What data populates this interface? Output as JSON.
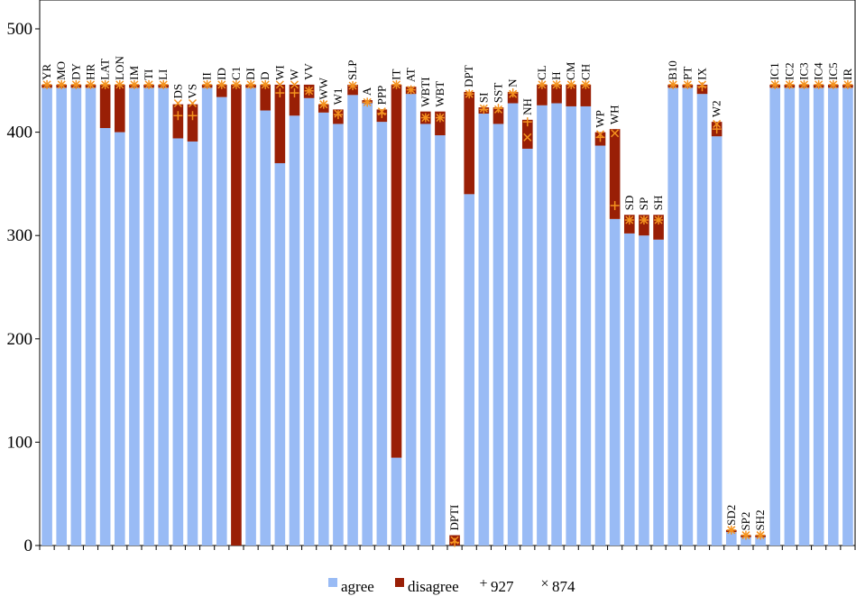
{
  "chart_data": {
    "type": "bar",
    "stacked": true,
    "ylim": [
      0,
      500
    ],
    "yticks": [
      0,
      100,
      200,
      300,
      400,
      500
    ],
    "grid": false,
    "legend_position": "bottom",
    "categories": [
      "YR",
      "MO",
      "DY",
      "HR",
      "LAT",
      "LON",
      "IM",
      "TI",
      "LI",
      "DS",
      "VS",
      "II",
      "ID",
      "C1",
      "DI",
      "D",
      "WI",
      "W",
      "VV",
      "WW",
      "W1",
      "SLP",
      "A",
      "PPP",
      "IT",
      "AT",
      "WBTI",
      "WBT",
      "DPTI",
      "DPT",
      "SI",
      "SST",
      "N",
      "NH",
      "CL",
      "H",
      "CM",
      "CH",
      "WP",
      "WH",
      "SD",
      "SP",
      "SH",
      "B10",
      "PT",
      "IX",
      "W2",
      "SD2",
      "SP2",
      "SH2",
      "IC1",
      "IC2",
      "IC3",
      "IC4",
      "IC5",
      "IR"
    ],
    "series": [
      {
        "name": "agree",
        "kind": "bar",
        "color": "#99bbf5",
        "values": [
          443,
          443,
          443,
          443,
          404,
          400,
          443,
          443,
          443,
          394,
          391,
          443,
          434,
          0,
          443,
          421,
          370,
          416,
          433,
          419,
          408,
          436,
          428,
          410,
          85,
          437,
          408,
          397,
          0,
          340,
          418,
          408,
          428,
          384,
          426,
          428,
          425,
          425,
          387,
          316,
          302,
          300,
          296,
          443,
          443,
          437,
          396,
          13,
          8,
          8,
          443,
          443,
          443,
          443,
          443,
          443
        ]
      },
      {
        "name": "disagree",
        "kind": "bar",
        "color": "#991f06",
        "values": [
          3,
          3,
          3,
          3,
          42,
          46,
          3,
          3,
          3,
          33,
          36,
          3,
          12,
          446,
          3,
          25,
          76,
          30,
          13,
          8,
          14,
          10,
          3,
          12,
          361,
          7,
          12,
          23,
          10,
          99,
          6,
          16,
          11,
          28,
          20,
          18,
          21,
          21,
          13,
          87,
          18,
          20,
          24,
          3,
          3,
          9,
          14,
          2,
          2,
          2,
          3,
          3,
          3,
          3,
          3,
          3
        ]
      },
      {
        "name": "927",
        "kind": "marker",
        "symbol": "+",
        "color": "#f4931f",
        "values": [
          446,
          446,
          446,
          446,
          446,
          446,
          446,
          446,
          446,
          416,
          416,
          446,
          446,
          446,
          446,
          446,
          438,
          438,
          440,
          427,
          417,
          445,
          429,
          418,
          446,
          441,
          414,
          414,
          3,
          437,
          422,
          423,
          438,
          410,
          446,
          446,
          446,
          446,
          395,
          329,
          315,
          315,
          315,
          446,
          446,
          444,
          403,
          15,
          10,
          10,
          446,
          446,
          446,
          446,
          446,
          446
        ]
      },
      {
        "name": "874",
        "kind": "marker",
        "symbol": "×",
        "color": "#f4931f",
        "values": [
          446,
          446,
          446,
          446,
          446,
          446,
          446,
          446,
          446,
          428,
          428,
          446,
          446,
          446,
          446,
          446,
          446,
          446,
          440,
          427,
          418,
          445,
          429,
          420,
          446,
          441,
          414,
          414,
          5,
          437,
          423,
          422,
          437,
          395,
          446,
          446,
          446,
          446,
          398,
          399,
          315,
          315,
          315,
          446,
          446,
          446,
          408,
          15,
          10,
          10,
          446,
          446,
          446,
          446,
          446,
          446
        ]
      }
    ]
  }
}
